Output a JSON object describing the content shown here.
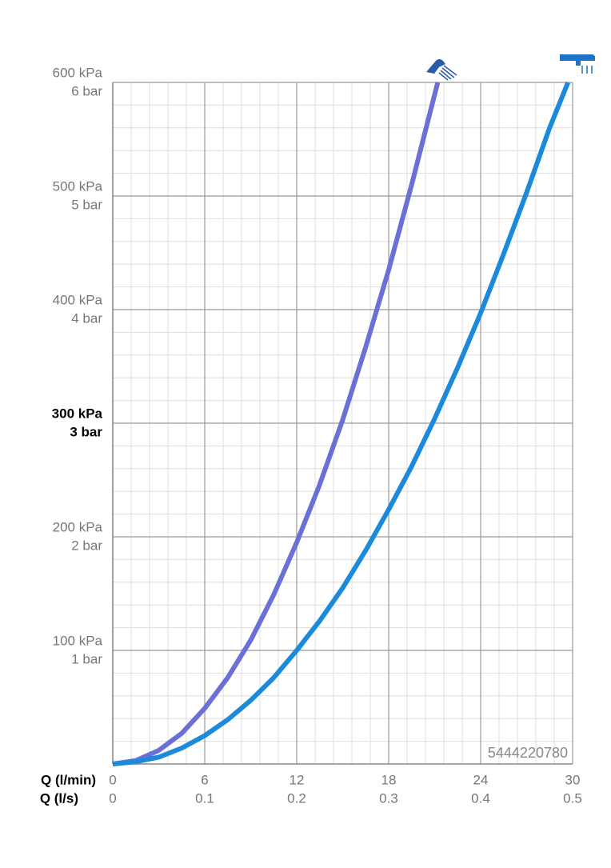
{
  "chart_data": {
    "type": "line",
    "xlabel": "Q (l/min)",
    "x2label": "Q (l/s)",
    "xlim": [
      0,
      30
    ],
    "xticks": [
      0,
      6,
      12,
      18,
      24,
      30
    ],
    "x2lim": [
      0,
      0.5
    ],
    "x2ticks": [
      0,
      0.1,
      0.2,
      0.3,
      0.4,
      0.5
    ],
    "ylim": [
      0,
      600
    ],
    "yticks": [
      {
        "value": 100,
        "label": "100 kPa"
      },
      {
        "value": 200,
        "label": "200 kPa"
      },
      {
        "value": 300,
        "label": "300 kPa"
      },
      {
        "value": 400,
        "label": "400 kPa"
      },
      {
        "value": 500,
        "label": "500 kPa"
      },
      {
        "value": 600,
        "label": "600 kPa"
      }
    ],
    "y2lim": [
      0,
      6
    ],
    "y2ticks": [
      {
        "value": 1,
        "label": "1 bar"
      },
      {
        "value": 2,
        "label": "2 bar"
      },
      {
        "value": 3,
        "label": "3 bar"
      },
      {
        "value": 4,
        "label": "4 bar"
      },
      {
        "value": 5,
        "label": "5 bar"
      },
      {
        "value": 6,
        "label": "6 bar"
      }
    ],
    "bold_ytick": 300,
    "grid": true,
    "annotation": "5444220780",
    "series": [
      {
        "color": "#6b70d6",
        "x": [
          0,
          1.5,
          3,
          4.5,
          6,
          7.5,
          9,
          10.5,
          12,
          13.5,
          15,
          16.5,
          18,
          19.5,
          21.2
        ],
        "values": [
          0,
          3,
          12,
          27,
          49,
          76,
          109,
          149,
          195,
          246,
          303,
          367,
          435,
          510,
          600
        ]
      },
      {
        "color": "#1b8ada",
        "x": [
          0,
          1.5,
          3,
          4.5,
          6,
          7.5,
          9,
          10.5,
          12,
          13.5,
          15,
          16.5,
          18,
          19.5,
          21,
          22.5,
          24,
          25.5,
          27,
          28.5,
          29.7
        ],
        "values": [
          0,
          2,
          6,
          14,
          25,
          39,
          56,
          76,
          100,
          126,
          155,
          188,
          224,
          262,
          304,
          349,
          397,
          449,
          503,
          560,
          600
        ]
      }
    ]
  }
}
